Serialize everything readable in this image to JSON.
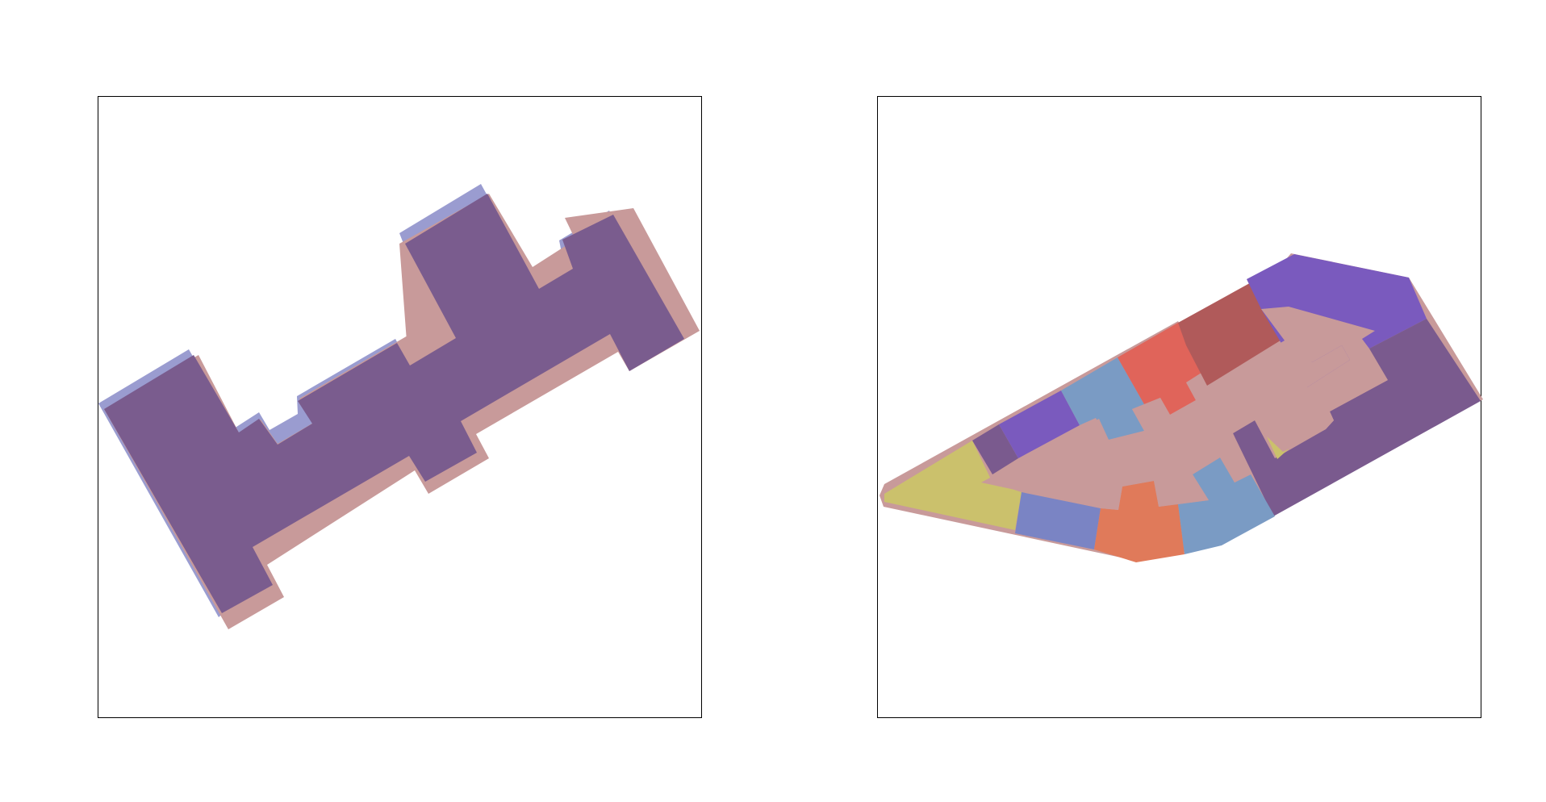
{
  "colors": {
    "background": "#ffffff",
    "frame_stroke": "#000000",
    "blue_overlay": "#9a9cd0",
    "pink_overlay": "#c89a9a",
    "overlap_purple": "#7a5c8e",
    "room_yellow": "#cbc16c",
    "room_steel_blue": "#7a9bc4",
    "room_violet": "#7a5abe",
    "room_dark_red": "#b05a5a",
    "room_tomato": "#e0645a",
    "room_periwinkle": "#7a84c4",
    "room_salmon": "#e07a5a",
    "room_plum": "#7a5a8e"
  },
  "panels": [
    {
      "name": "left-panel",
      "layers": [
        "blue-footprint",
        "pink-footprint",
        "overlap-footprint"
      ]
    },
    {
      "name": "right-panel",
      "layers": [
        "outline",
        "rooms",
        "corridor"
      ]
    }
  ]
}
